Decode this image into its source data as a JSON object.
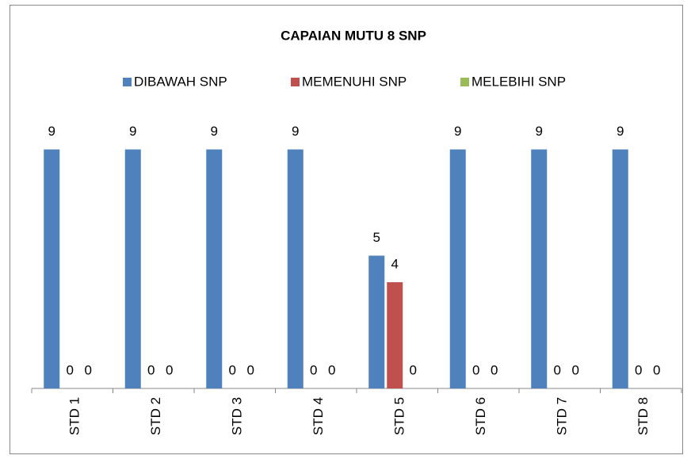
{
  "chart_data": {
    "type": "bar",
    "title": "CAPAIAN MUTU 8 SNP",
    "categories": [
      "STD 1",
      "STD 2",
      "STD 3",
      "STD 4",
      "STD 5",
      "STD 6",
      "STD 7",
      "STD 8"
    ],
    "series": [
      {
        "name": "DIBAWAH SNP",
        "color": "#4f81bd",
        "values": [
          9,
          9,
          9,
          9,
          5,
          9,
          9,
          9
        ]
      },
      {
        "name": "MEMENUHI SNP",
        "color": "#c0504d",
        "values": [
          0,
          0,
          0,
          0,
          4,
          0,
          0,
          0
        ]
      },
      {
        "name": "MELEBIHI SNP",
        "color": "#9bbb59",
        "values": [
          0,
          0,
          0,
          0,
          0,
          0,
          0,
          0
        ]
      }
    ],
    "ylim": [
      0,
      10
    ],
    "legend": "top"
  }
}
